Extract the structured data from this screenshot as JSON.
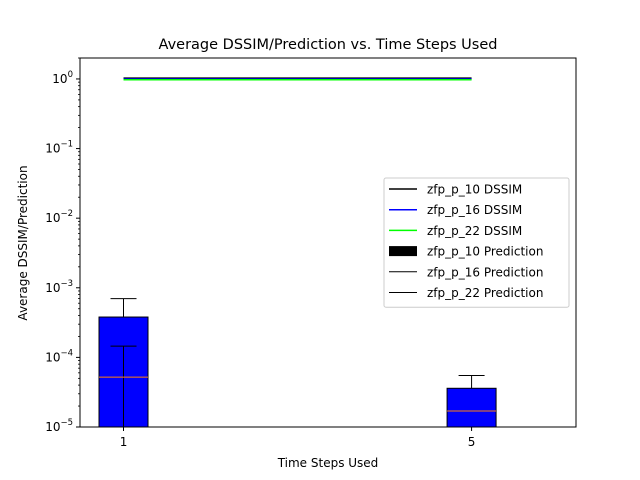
{
  "chart_data": {
    "type": "bar",
    "title": "Average DSSIM/Prediction vs. Time Steps Used",
    "xlabel": "Time Steps Used",
    "ylabel": "Average DSSIM/Prediction",
    "yscale": "log",
    "ylim": [
      1e-05,
      2
    ],
    "xlim": [
      0.5,
      6.2
    ],
    "x_ticks": [
      {
        "value": 1,
        "label": "1"
      },
      {
        "value": 5,
        "label": "5"
      }
    ],
    "y_ticks": [
      {
        "value": 1e-05,
        "base": "10",
        "exp": "−5"
      },
      {
        "value": 0.0001,
        "base": "10",
        "exp": "−4"
      },
      {
        "value": 0.001,
        "base": "10",
        "exp": "−3"
      },
      {
        "value": 0.01,
        "base": "10",
        "exp": "−2"
      },
      {
        "value": 0.1,
        "base": "10",
        "exp": "−1"
      },
      {
        "value": 1,
        "base": "10",
        "exp": "0"
      }
    ],
    "dssim_series": [
      {
        "name": "zfp_p_10 DSSIM",
        "color": "#000000",
        "x": [
          1,
          5
        ],
        "y": [
          1.0,
          1.0
        ]
      },
      {
        "name": "zfp_p_16 DSSIM",
        "color": "#0000ff",
        "x": [
          1,
          5
        ],
        "y": [
          1.0,
          1.0
        ]
      },
      {
        "name": "zfp_p_22 DSSIM",
        "color": "#00ff00",
        "x": [
          1,
          5
        ],
        "y": [
          1.0,
          1.0
        ]
      }
    ],
    "prediction_series": [
      {
        "name": "zfp_p_10 Prediction",
        "color": "#0000ff",
        "x": [
          1,
          5
        ],
        "values": [
          0.00038,
          3.6e-05
        ],
        "median": [
          5.2e-05,
          1.7e-05
        ],
        "whisker_top": [
          0.0007,
          5.5e-05
        ],
        "whisker_low_cap": [
          0.000145,
          null
        ]
      },
      {
        "name": "zfp_p_16 Prediction",
        "color": "#0000ff",
        "x": [
          1,
          5
        ],
        "values": [],
        "median": [],
        "whisker_top": [],
        "whisker_low_cap": []
      },
      {
        "name": "zfp_p_22 Prediction",
        "color": "#0000ff",
        "x": [
          1,
          5
        ],
        "values": [],
        "median": [],
        "whisker_top": [],
        "whisker_low_cap": []
      }
    ],
    "median_color": "#ff7f0e",
    "legend_placement": "center-right",
    "legend": [
      {
        "label": "zfp_p_10 DSSIM",
        "kind": "line",
        "color": "#000000"
      },
      {
        "label": "zfp_p_16 DSSIM",
        "kind": "line",
        "color": "#0000ff"
      },
      {
        "label": "zfp_p_22 DSSIM",
        "kind": "line",
        "color": "#00ff00"
      },
      {
        "label": "zfp_p_10 Prediction",
        "kind": "patch",
        "color": "#000000"
      },
      {
        "label": "zfp_p_16 Prediction",
        "kind": "thinline",
        "color": "#000000"
      },
      {
        "label": "zfp_p_22 Prediction",
        "kind": "thinline",
        "color": "#000000"
      }
    ],
    "grid": false
  }
}
